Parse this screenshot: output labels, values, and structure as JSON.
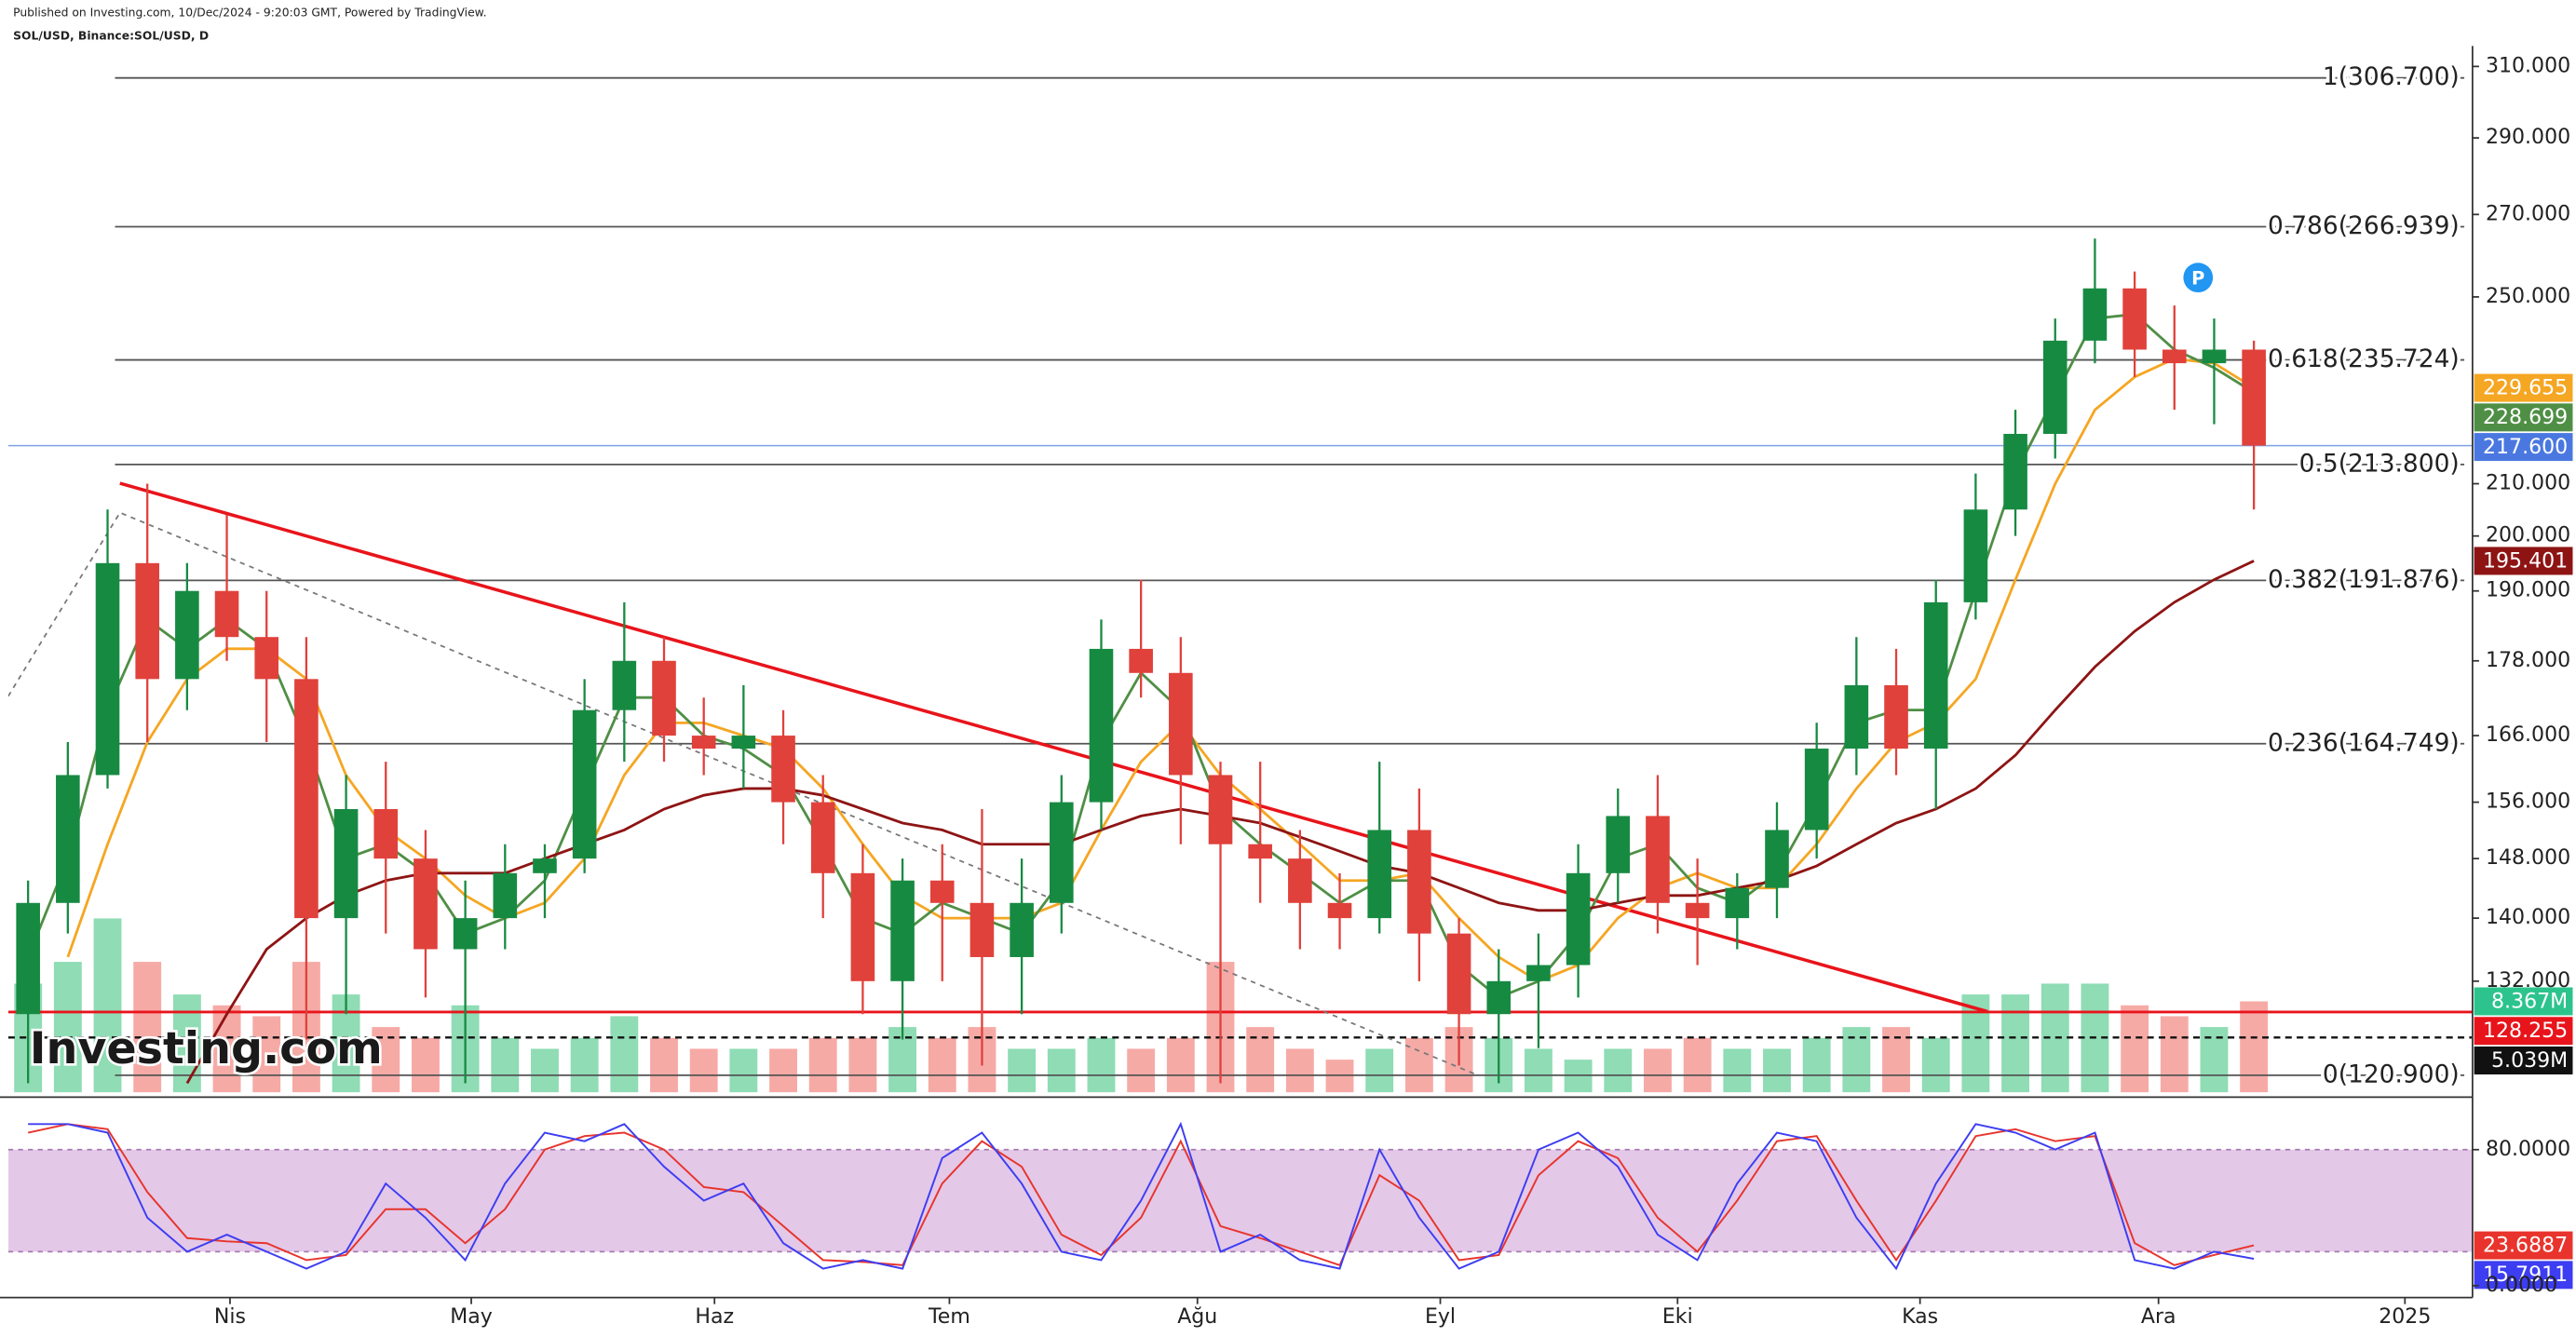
{
  "chart_data": {
    "type": "candlestick",
    "header": [
      "Published on Investing.com, 10/Dec/2024 - 9:20:03 GMT, Powered by TradingView.",
      "SOL/USD, Binance:SOL/USD, D"
    ],
    "watermark": "Investing.com",
    "marker_label": "P",
    "xlim": [
      0,
      62
    ],
    "xticks": [
      {
        "value": 5.58,
        "label": "Nis"
      },
      {
        "value": 11.65,
        "label": "May"
      },
      {
        "value": 17.77,
        "label": "Haz"
      },
      {
        "value": 23.68,
        "label": "Tem"
      },
      {
        "value": 29.92,
        "label": "Ağu"
      },
      {
        "value": 36.03,
        "label": "Eyl"
      },
      {
        "value": 42.0,
        "label": "Eki"
      },
      {
        "value": 48.1,
        "label": "Kas"
      },
      {
        "value": 54.1,
        "label": "Ara"
      },
      {
        "value": 60.3,
        "label": "2025"
      }
    ],
    "ylim": [
      119,
      315
    ],
    "log_scale": true,
    "yticks": [
      {
        "value": 310,
        "label": "310.000"
      },
      {
        "value": 290,
        "label": "290.000"
      },
      {
        "value": 270,
        "label": "270.000"
      },
      {
        "value": 250,
        "label": "250.000"
      },
      {
        "value": 210,
        "label": "210.000"
      },
      {
        "value": 200,
        "label": "200.000"
      },
      {
        "value": 190,
        "label": "190.000"
      },
      {
        "value": 178,
        "label": "178.000"
      },
      {
        "value": 166,
        "label": "166.000"
      },
      {
        "value": 156,
        "label": "156.000"
      },
      {
        "value": 148,
        "label": "148.000"
      },
      {
        "value": 140,
        "label": "140.000"
      },
      {
        "value": 132,
        "label": "132.000"
      }
    ],
    "candles": {
      "up_color": "#178a42",
      "down_color": "#e0413b",
      "open": [
        128,
        142,
        160,
        195,
        175,
        190,
        182,
        175,
        140,
        155,
        148,
        136,
        140,
        146,
        148,
        170,
        178,
        166,
        164,
        166,
        156,
        146,
        132,
        145,
        142,
        135,
        142,
        156,
        180,
        176,
        160,
        150,
        148,
        142,
        140,
        152,
        138,
        128,
        132,
        134,
        146,
        154,
        142,
        140,
        144,
        152,
        164,
        174,
        164,
        188,
        205,
        220,
        240,
        252,
        238,
        235,
        238
      ],
      "high": [
        145,
        165,
        205,
        210,
        195,
        204,
        190,
        182,
        160,
        162,
        152,
        145,
        150,
        150,
        175,
        188,
        182,
        172,
        174,
        170,
        160,
        150,
        148,
        150,
        155,
        148,
        160,
        185,
        192,
        182,
        162,
        162,
        152,
        146,
        162,
        158,
        140,
        136,
        138,
        150,
        158,
        160,
        148,
        146,
        156,
        168,
        182,
        180,
        192,
        212,
        225,
        245,
        264,
        256,
        248,
        245,
        240
      ],
      "low": [
        120,
        138,
        158,
        165,
        170,
        178,
        165,
        125,
        128,
        138,
        130,
        120,
        136,
        140,
        146,
        162,
        162,
        160,
        158,
        150,
        140,
        128,
        125,
        132,
        122,
        128,
        138,
        152,
        172,
        150,
        120,
        142,
        136,
        136,
        138,
        132,
        122,
        120,
        124,
        130,
        142,
        138,
        134,
        136,
        140,
        148,
        160,
        160,
        155,
        185,
        200,
        215,
        235,
        232,
        225,
        222,
        205
      ],
      "close": [
        142,
        160,
        195,
        175,
        190,
        182,
        175,
        140,
        155,
        148,
        136,
        140,
        146,
        148,
        170,
        178,
        166,
        164,
        166,
        156,
        146,
        132,
        145,
        142,
        135,
        142,
        156,
        180,
        176,
        160,
        150,
        148,
        142,
        140,
        152,
        138,
        128,
        132,
        134,
        146,
        154,
        142,
        140,
        144,
        152,
        164,
        174,
        164,
        188,
        205,
        220,
        240,
        252,
        238,
        235,
        238,
        217.6
      ]
    },
    "moving_averages": [
      {
        "color": "#f5a623",
        "values": [
          null,
          135,
          150,
          165,
          175,
          180,
          180,
          175,
          160,
          152,
          148,
          143,
          140,
          142,
          148,
          160,
          168,
          168,
          166,
          164,
          158,
          150,
          143,
          140,
          140,
          140,
          142,
          152,
          162,
          168,
          160,
          155,
          150,
          145,
          145,
          146,
          140,
          135,
          132,
          134,
          140,
          144,
          146,
          144,
          144,
          150,
          158,
          165,
          168,
          175,
          192,
          210,
          225,
          232,
          236,
          235,
          229.655
        ]
      },
      {
        "color": "#4f8f45",
        "values": [
          135,
          148,
          170,
          185,
          180,
          185,
          180,
          165,
          148,
          150,
          146,
          138,
          140,
          145,
          158,
          172,
          172,
          166,
          164,
          160,
          150,
          140,
          138,
          142,
          140,
          138,
          145,
          165,
          176,
          170,
          155,
          150,
          146,
          142,
          145,
          145,
          134,
          130,
          132,
          138,
          148,
          150,
          144,
          142,
          146,
          156,
          168,
          170,
          170,
          190,
          212,
          228,
          245,
          246,
          238,
          234,
          228.699
        ]
      },
      {
        "color": "#8e1414",
        "values": [
          null,
          null,
          null,
          null,
          120,
          128,
          136,
          140,
          143,
          145,
          146,
          146,
          146,
          148,
          150,
          152,
          155,
          157,
          158,
          158,
          157,
          155,
          153,
          152,
          150,
          150,
          150,
          152,
          154,
          155,
          154,
          153,
          151,
          149,
          147,
          146,
          144,
          142,
          141,
          141,
          142,
          143,
          143,
          144,
          145,
          147,
          150,
          153,
          155,
          158,
          163,
          170,
          177,
          183,
          188,
          192,
          195.401
        ]
      }
    ],
    "fib_levels": [
      {
        "value": 306.7,
        "label": "1(306.700)"
      },
      {
        "value": 266.939,
        "label": "0.786(266.939)"
      },
      {
        "value": 235.724,
        "label": "0.618(235.724)"
      },
      {
        "value": 213.8,
        "label": "0.5(213.800)"
      },
      {
        "value": 191.876,
        "label": "0.382(191.876)"
      },
      {
        "value": 164.749,
        "label": "0.236(164.749)"
      },
      {
        "value": 120.9,
        "label": "0(120.900)"
      }
    ],
    "fib_color": "#555555",
    "trendlines": [
      {
        "color": "#e8141b",
        "dashed": false,
        "points": [
          [
            2.81,
            210.1
          ],
          [
            49.8,
            128.3
          ]
        ]
      },
      {
        "color": "#777777",
        "dashed": true,
        "points": [
          [
            0,
            172.2
          ],
          [
            2.81,
            204.4
          ],
          [
            36.98,
            120.9
          ]
        ]
      }
    ],
    "price_tags": [
      {
        "value": 217.6,
        "label": "217.600",
        "color": "#4a78e0"
      },
      {
        "value": 128.255,
        "label": "128.255",
        "color": "#e8141b"
      }
    ],
    "volume": {
      "up_color": "#8fdcb5",
      "down_color": "#f6aaa6",
      "last_color": "#2cc48c",
      "ylim": [
        0,
        96
      ],
      "values": [
        10,
        12,
        16,
        12,
        9,
        8,
        7,
        12,
        9,
        6,
        5,
        8,
        5,
        4,
        5,
        7,
        5,
        4,
        4,
        4,
        5,
        5,
        6,
        5,
        6,
        4,
        4,
        5,
        4,
        5,
        12,
        6,
        4,
        3,
        4,
        5,
        6,
        5,
        4,
        3,
        4,
        4,
        5,
        4,
        4,
        5,
        6,
        6,
        5,
        9,
        9,
        10,
        10,
        8,
        7,
        6,
        8.367
      ],
      "value_labels": [
        null,
        null,
        null,
        null,
        null,
        null,
        null,
        null,
        null,
        null,
        null,
        null,
        null,
        null,
        null,
        null,
        null,
        null,
        null,
        null,
        null,
        null,
        null,
        null,
        null,
        null,
        null,
        null,
        null,
        null,
        null,
        null,
        null,
        null,
        null,
        null,
        null,
        null,
        null,
        null,
        null,
        null,
        null,
        null,
        null,
        null,
        null,
        null,
        null,
        null,
        null,
        null,
        null,
        null,
        null,
        null,
        "8.367M"
      ],
      "ma": {
        "value": 5.039,
        "label": "5.039M"
      }
    },
    "stochastic": {
      "ylim": [
        -7,
        107
      ],
      "yticks": [
        {
          "value": 80,
          "label": "80.0000"
        },
        {
          "value": 0,
          "label": "0.0000"
        }
      ],
      "bands": [
        20,
        80
      ],
      "band_color": "#e3c8e8",
      "series": [
        {
          "color": "#e8342c",
          "values": [
            90,
            95,
            92,
            55,
            28,
            26,
            25,
            15,
            18,
            45,
            45,
            25,
            45,
            80,
            88,
            90,
            80,
            58,
            55,
            35,
            15,
            14,
            12,
            60,
            85,
            70,
            30,
            18,
            40,
            85,
            35,
            28,
            20,
            12,
            65,
            50,
            15,
            18,
            65,
            85,
            75,
            40,
            20,
            50,
            85,
            88,
            50,
            15,
            50,
            88,
            92,
            85,
            88,
            25,
            12,
            18,
            23.6887
          ]
        },
        {
          "color": "#3d3df2",
          "values": [
            95,
            95,
            90,
            40,
            20,
            30,
            20,
            10,
            20,
            60,
            40,
            15,
            60,
            90,
            85,
            95,
            70,
            50,
            60,
            25,
            10,
            15,
            10,
            75,
            90,
            60,
            20,
            15,
            50,
            95,
            20,
            30,
            15,
            10,
            80,
            40,
            10,
            20,
            80,
            90,
            70,
            30,
            15,
            60,
            90,
            85,
            40,
            10,
            60,
            95,
            90,
            80,
            90,
            15,
            10,
            20,
            15.7911
          ]
        }
      ]
    }
  }
}
